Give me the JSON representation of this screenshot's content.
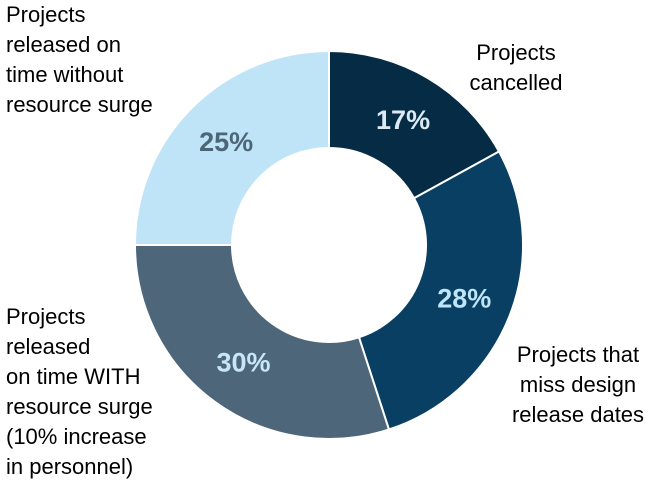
{
  "chart_data": {
    "type": "pie",
    "title": "",
    "donut": true,
    "start": "12 o'clock, clockwise",
    "slices": [
      {
        "category_lines": [
          "Projects",
          "cancelled"
        ],
        "value": 17,
        "data_label": "17%",
        "color": "#062b45",
        "label_color": "#ddeaf3"
      },
      {
        "category_lines": [
          "Projects that",
          "miss design",
          "release dates"
        ],
        "value": 28,
        "data_label": "28%",
        "color": "#083f62",
        "label_color": "#bfe4f7"
      },
      {
        "category_lines": [
          "Projects",
          "released",
          "on time WITH",
          "resource surge",
          "(10% increase",
          "in personnel)"
        ],
        "value": 30,
        "data_label": "30%",
        "color": "#4d6679",
        "label_color": "#c7e6f7"
      },
      {
        "category_lines": [
          "Projects",
          "released on",
          "time without",
          "resource surge"
        ],
        "value": 25,
        "data_label": "25%",
        "color": "#bfe4f7",
        "label_color": "#4c6678"
      }
    ]
  }
}
